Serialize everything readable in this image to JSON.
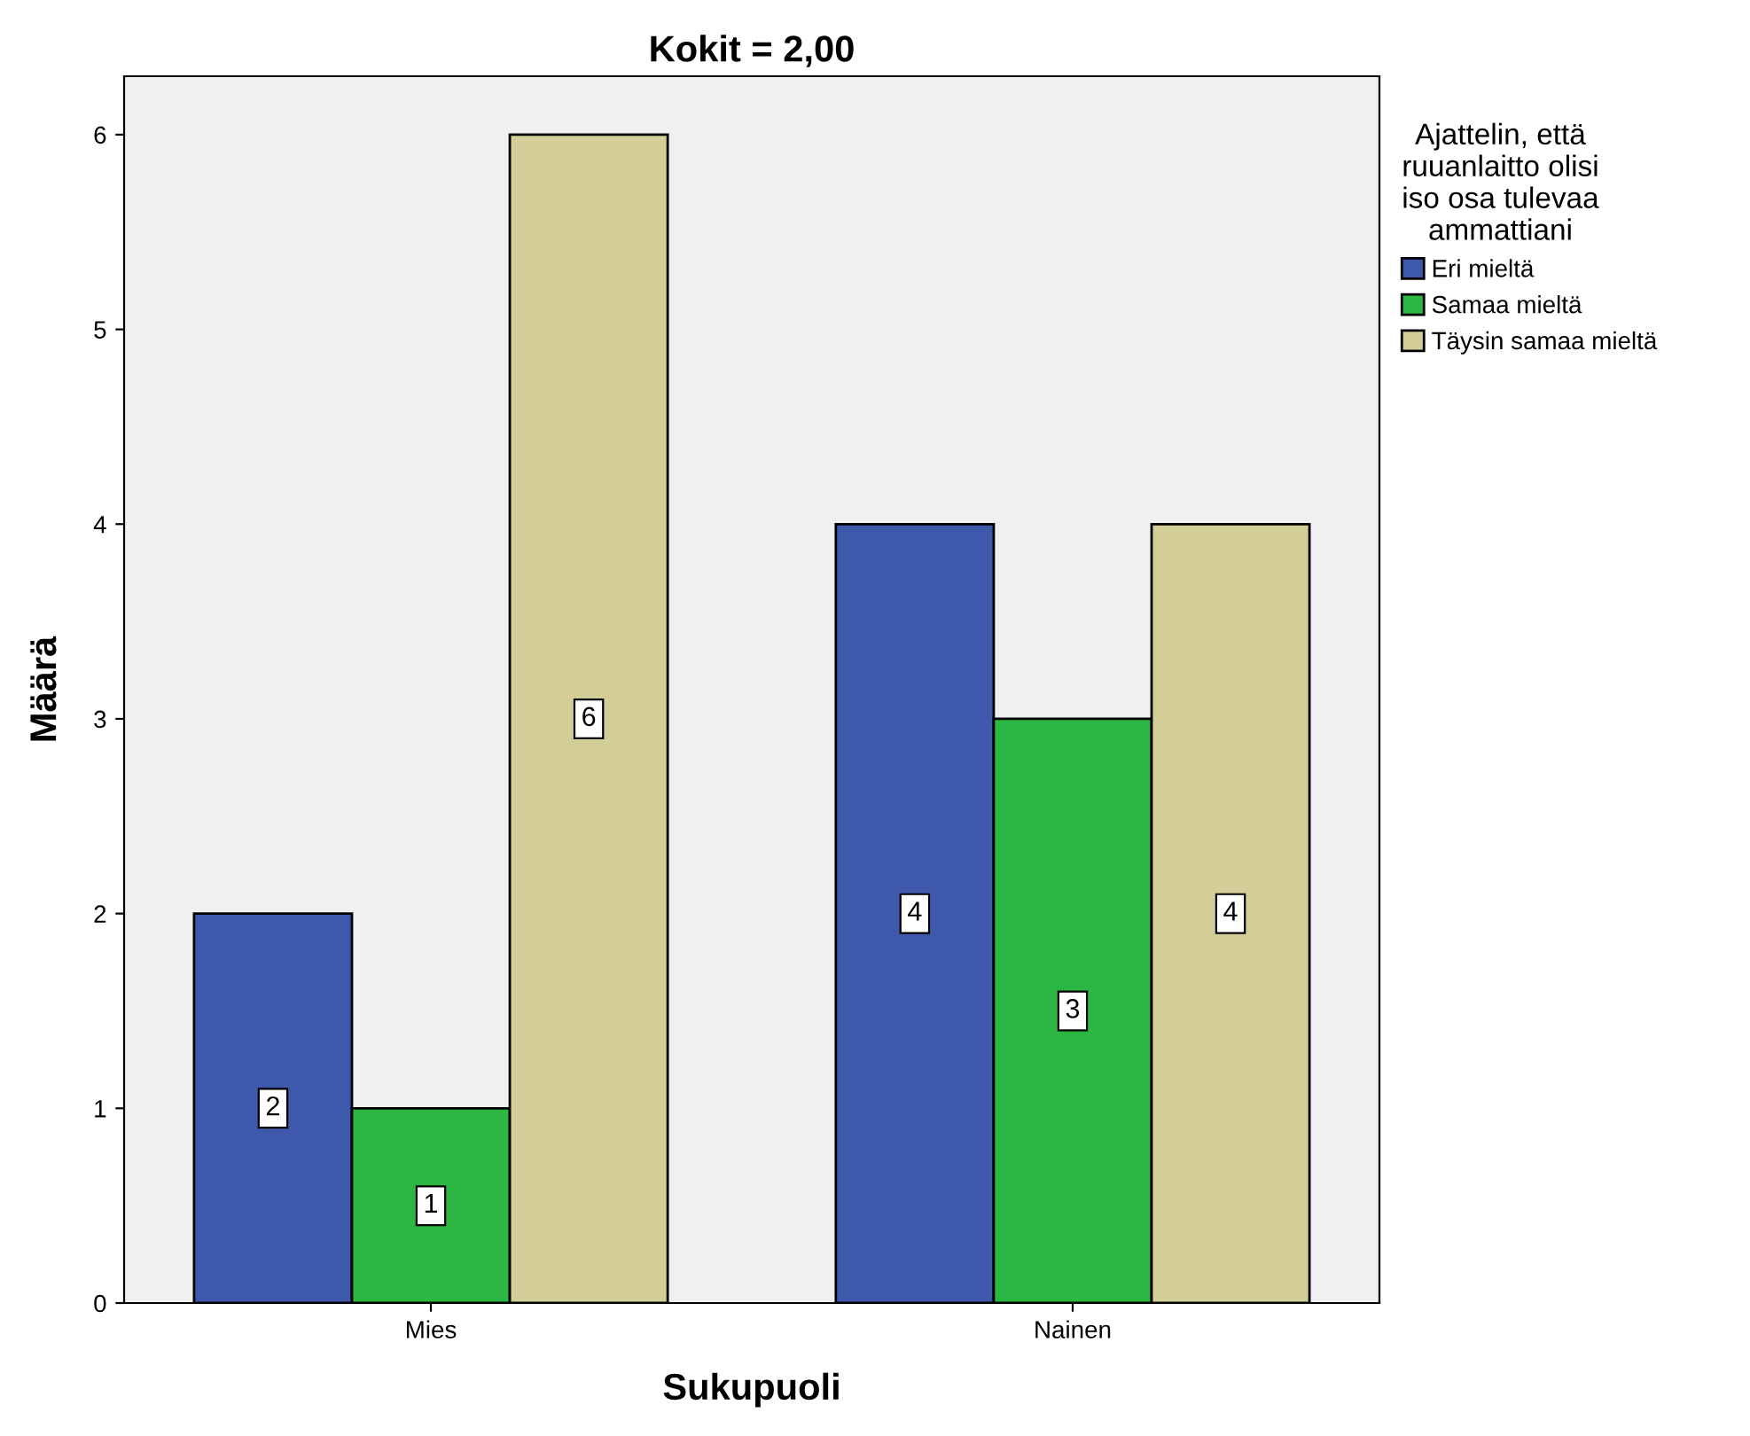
{
  "chart_data": {
    "type": "bar",
    "title": "Kokit = 2,00",
    "xlabel": "Sukupuoli",
    "ylabel": "Määrä",
    "legend_title": "Ajattelin, että\nruuanlaitto olisi\niso osa tulevaa\nammattiani",
    "categories": [
      "Mies",
      "Nainen"
    ],
    "series": [
      {
        "name": "Eri mieltä",
        "color": "#3e58ac",
        "values": [
          2,
          4
        ]
      },
      {
        "name": "Samaa mieltä",
        "color": "#2bb741",
        "values": [
          1,
          3
        ]
      },
      {
        "name": "Täysin samaa mieltä",
        "color": "#d3ce97",
        "values": [
          6,
          4
        ]
      }
    ],
    "ylim": [
      0,
      6.3
    ],
    "yticks": [
      0,
      1,
      2,
      3,
      4,
      5,
      6
    ],
    "grid": false,
    "legend": "right",
    "data_labels": true
  }
}
